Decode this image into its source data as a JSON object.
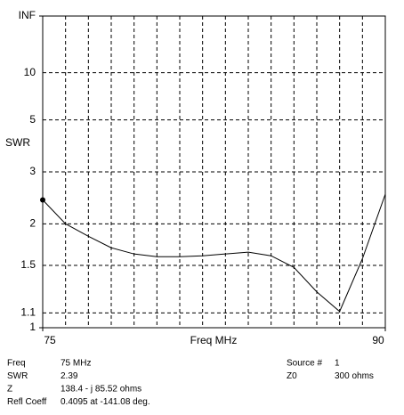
{
  "chart_data": {
    "type": "line",
    "y_label": "SWR",
    "x_label": "Freq MHz",
    "y_scale": "reflection",
    "x": [
      75,
      76,
      77,
      78,
      79,
      80,
      81,
      82,
      83,
      84,
      85,
      86,
      87,
      88,
      89,
      90
    ],
    "series": [
      {
        "color": "#000000",
        "values": [
          2.39,
          2.0,
          1.83,
          1.69,
          1.62,
          1.59,
          1.59,
          1.6,
          1.62,
          1.64,
          1.6,
          1.48,
          1.26,
          1.11,
          1.57,
          2.5
        ]
      }
    ],
    "xlim": [
      75,
      90
    ],
    "xticks": [
      75,
      90
    ],
    "x_minor_ticks": [
      76,
      77,
      78,
      79,
      80,
      81,
      82,
      83,
      84,
      85,
      86,
      87,
      88,
      89
    ],
    "ylim": [
      1,
      null
    ],
    "yticks": [
      {
        "value": null,
        "label": "INF"
      },
      10,
      5,
      3,
      2,
      1.5,
      1.1,
      1
    ],
    "grid": true
  },
  "readout": {
    "left": [
      [
        "Freq",
        "75 MHz"
      ],
      [
        "SWR",
        "2.39"
      ],
      [
        "Z",
        "138.4 - j 85.52 ohms"
      ],
      [
        "Refl Coeff",
        "0.4095 at -141.08 deg."
      ]
    ],
    "right": [
      [
        "Source #",
        "1"
      ],
      [
        "Z0",
        "300 ohms"
      ]
    ]
  }
}
